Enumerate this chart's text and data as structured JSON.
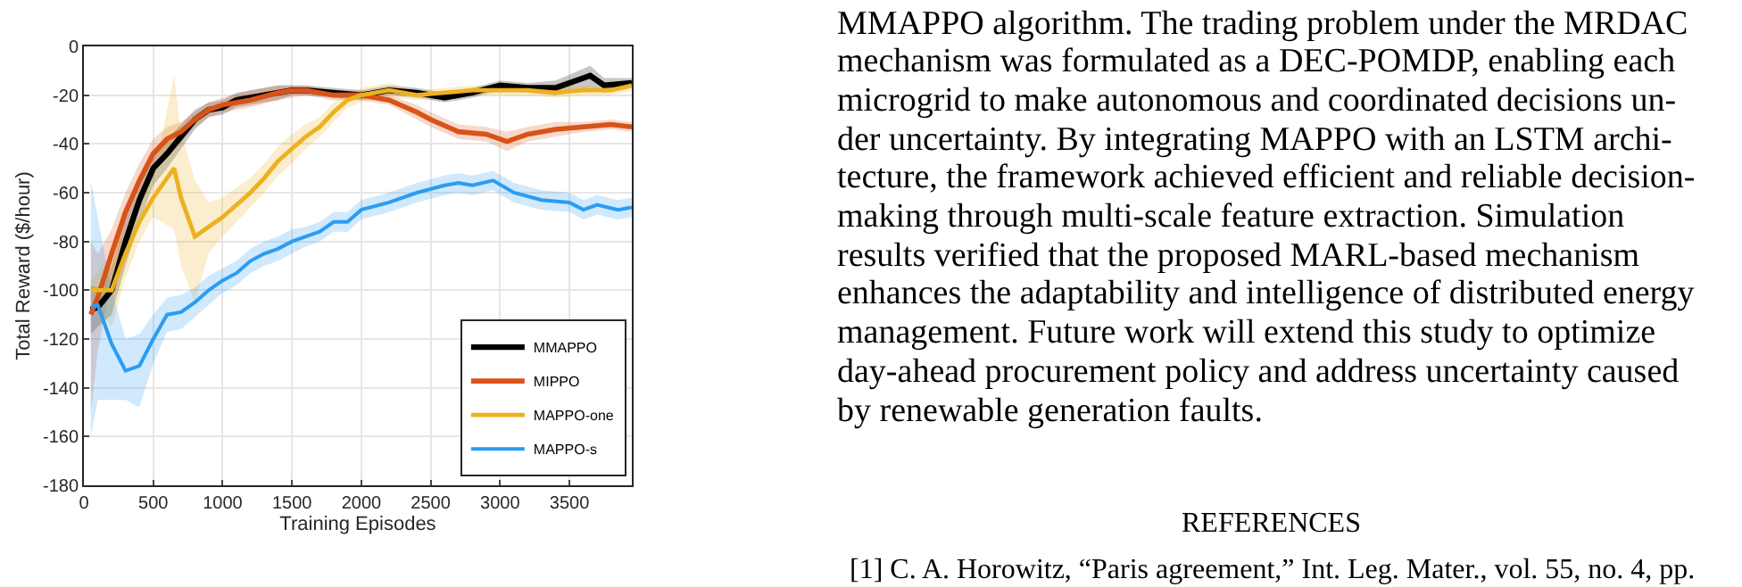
{
  "chart_data": {
    "type": "line",
    "xlabel": "Training Episodes",
    "ylabel": "Total Reward ($/hour)",
    "xlim": [
      0,
      3950
    ],
    "xticks": [
      0,
      500,
      1000,
      1500,
      2000,
      2500,
      3000,
      3500
    ],
    "ylim": [
      -180,
      0
    ],
    "yticks": [
      -180,
      -160,
      -140,
      -120,
      -100,
      -80,
      -60,
      -40,
      -20,
      0
    ],
    "grid": true,
    "legend": "bottom right",
    "line_style": "solid",
    "marker": "none",
    "series": [
      {
        "name": "MMAPPO",
        "color": "#000000",
        "x": [
          50,
          100,
          200,
          300,
          400,
          500,
          600,
          700,
          800,
          900,
          1000,
          1100,
          1200,
          1300,
          1400,
          1500,
          1600,
          1800,
          2000,
          2200,
          2400,
          2600,
          2800,
          3000,
          3200,
          3400,
          3650,
          3750,
          3950
        ],
        "values": [
          -108,
          -107,
          -100,
          -80,
          -63,
          -50,
          -44,
          -37,
          -30,
          -26,
          -25,
          -22,
          -21,
          -20,
          -19,
          -18,
          -18,
          -19,
          -20,
          -18,
          -19,
          -21,
          -19,
          -16,
          -17,
          -17,
          -12,
          -16,
          -15
        ],
        "lower": [
          -118,
          -115,
          -110,
          -90,
          -72,
          -57,
          -50,
          -42,
          -34,
          -29,
          -28,
          -25,
          -24,
          -23,
          -22,
          -20,
          -20,
          -21,
          -22,
          -20,
          -21,
          -23,
          -21,
          -18,
          -19,
          -20,
          -17,
          -19,
          -17
        ],
        "upper": [
          -98,
          -99,
          -90,
          -70,
          -54,
          -43,
          -38,
          -32,
          -26,
          -23,
          -22,
          -19,
          -18,
          -17,
          -16,
          -16,
          -16,
          -17,
          -18,
          -16,
          -17,
          -19,
          -17,
          -14,
          -15,
          -14,
          -8,
          -13,
          -13
        ]
      },
      {
        "name": "MIPPO",
        "color": "#d95319",
        "x": [
          50,
          100,
          200,
          300,
          400,
          500,
          600,
          700,
          800,
          900,
          1000,
          1200,
          1400,
          1500,
          1600,
          1800,
          2000,
          2200,
          2400,
          2500,
          2700,
          2900,
          3050,
          3200,
          3400,
          3600,
          3800,
          3950
        ],
        "values": [
          -110,
          -103,
          -85,
          -68,
          -55,
          -44,
          -38,
          -35,
          -30,
          -26,
          -24,
          -22,
          -19,
          -18,
          -18,
          -20,
          -20,
          -22,
          -27,
          -30,
          -35,
          -36,
          -39,
          -36,
          -34,
          -33,
          -32,
          -33
        ],
        "lower": [
          -150,
          -125,
          -95,
          -76,
          -62,
          -50,
          -43,
          -39,
          -33,
          -29,
          -27,
          -25,
          -22,
          -21,
          -20,
          -22,
          -22,
          -24,
          -30,
          -33,
          -38,
          -39,
          -43,
          -39,
          -37,
          -35,
          -34,
          -35
        ],
        "upper": [
          -80,
          -85,
          -75,
          -60,
          -48,
          -38,
          -33,
          -31,
          -27,
          -23,
          -21,
          -18,
          -16,
          -16,
          -16,
          -18,
          -18,
          -20,
          -24,
          -27,
          -32,
          -33,
          -35,
          -33,
          -31,
          -31,
          -30,
          -31
        ]
      },
      {
        "name": "MAPPO-one",
        "color": "#edb120",
        "x": [
          50,
          200,
          300,
          400,
          500,
          650,
          700,
          800,
          900,
          1000,
          1200,
          1300,
          1400,
          1500,
          1600,
          1700,
          1800,
          1900,
          2000,
          2200,
          2400,
          2600,
          2800,
          3000,
          3200,
          3400,
          3600,
          3800,
          3950
        ],
        "values": [
          -100,
          -100,
          -85,
          -72,
          -62,
          -50,
          -62,
          -78,
          -74,
          -70,
          -60,
          -54,
          -47,
          -42,
          -37,
          -33,
          -27,
          -22,
          -20,
          -18,
          -20,
          -19,
          -18,
          -18,
          -18,
          -19,
          -18,
          -18,
          -16
        ],
        "lower": [
          -104,
          -115,
          -95,
          -80,
          -70,
          -75,
          -90,
          -105,
          -85,
          -78,
          -66,
          -60,
          -53,
          -48,
          -42,
          -37,
          -31,
          -25,
          -23,
          -21,
          -22,
          -21,
          -20,
          -20,
          -20,
          -21,
          -20,
          -20,
          -18
        ],
        "upper": [
          -96,
          -85,
          -75,
          -64,
          -54,
          -12,
          -35,
          -55,
          -64,
          -62,
          -54,
          -48,
          -41,
          -36,
          -32,
          -29,
          -23,
          -19,
          -17,
          -15,
          -18,
          -17,
          -16,
          -16,
          -16,
          -17,
          -16,
          -16,
          -14
        ]
      },
      {
        "name": "MAPPO-s",
        "color": "#2b9cf2",
        "x": [
          50,
          100,
          200,
          300,
          400,
          500,
          600,
          700,
          800,
          900,
          1000,
          1100,
          1200,
          1300,
          1400,
          1500,
          1600,
          1700,
          1800,
          1900,
          2000,
          2200,
          2400,
          2600,
          2700,
          2800,
          2950,
          3100,
          3300,
          3500,
          3600,
          3700,
          3850,
          3950
        ],
        "values": [
          -107,
          -106,
          -122,
          -133,
          -131,
          -120,
          -110,
          -109,
          -105,
          -100,
          -96,
          -93,
          -88,
          -85,
          -83,
          -80,
          -78,
          -76,
          -72,
          -72,
          -67,
          -64,
          -60,
          -57,
          -56,
          -57,
          -55,
          -60,
          -63,
          -64,
          -67,
          -65,
          -67,
          -66
        ],
        "lower": [
          -160,
          -145,
          -145,
          -145,
          -148,
          -130,
          -117,
          -116,
          -111,
          -106,
          -101,
          -98,
          -93,
          -90,
          -88,
          -85,
          -82,
          -80,
          -76,
          -76,
          -71,
          -68,
          -64,
          -61,
          -60,
          -61,
          -59,
          -64,
          -67,
          -68,
          -71,
          -69,
          -71,
          -70
        ],
        "upper": [
          -55,
          -70,
          -100,
          -120,
          -118,
          -110,
          -103,
          -102,
          -99,
          -94,
          -91,
          -88,
          -83,
          -80,
          -78,
          -75,
          -74,
          -72,
          -68,
          -68,
          -63,
          -60,
          -56,
          -53,
          -52,
          -53,
          -51,
          -56,
          -59,
          -60,
          -63,
          -61,
          -63,
          -62
        ]
      }
    ],
    "annotations": [
      "MMAPPO algorithm. The trading problem under the MRDAC",
      "mechanism was formulated as a DEC-POMDP, enabling each",
      "microgrid to make autonomous and coordinated decisions un-",
      "der uncertainty. By integrating MAPPO with an LSTM archi-",
      "tecture, the framework achieved efficient and reliable decision-",
      "making through multi-scale feature extraction. Simulation",
      "results verified that the proposed MARL-based mechanism",
      "enhances the adaptability and intelligence of distributed energy",
      "management. Future work will extend this study to optimize",
      "day-ahead procurement policy and address uncertainty caused",
      "by renewable generation faults.",
      "REFERENCES",
      "[1] C. A. Horowitz, “Paris agreement,” Int. Leg. Mater., vol. 55, no. 4, pp."
    ]
  }
}
